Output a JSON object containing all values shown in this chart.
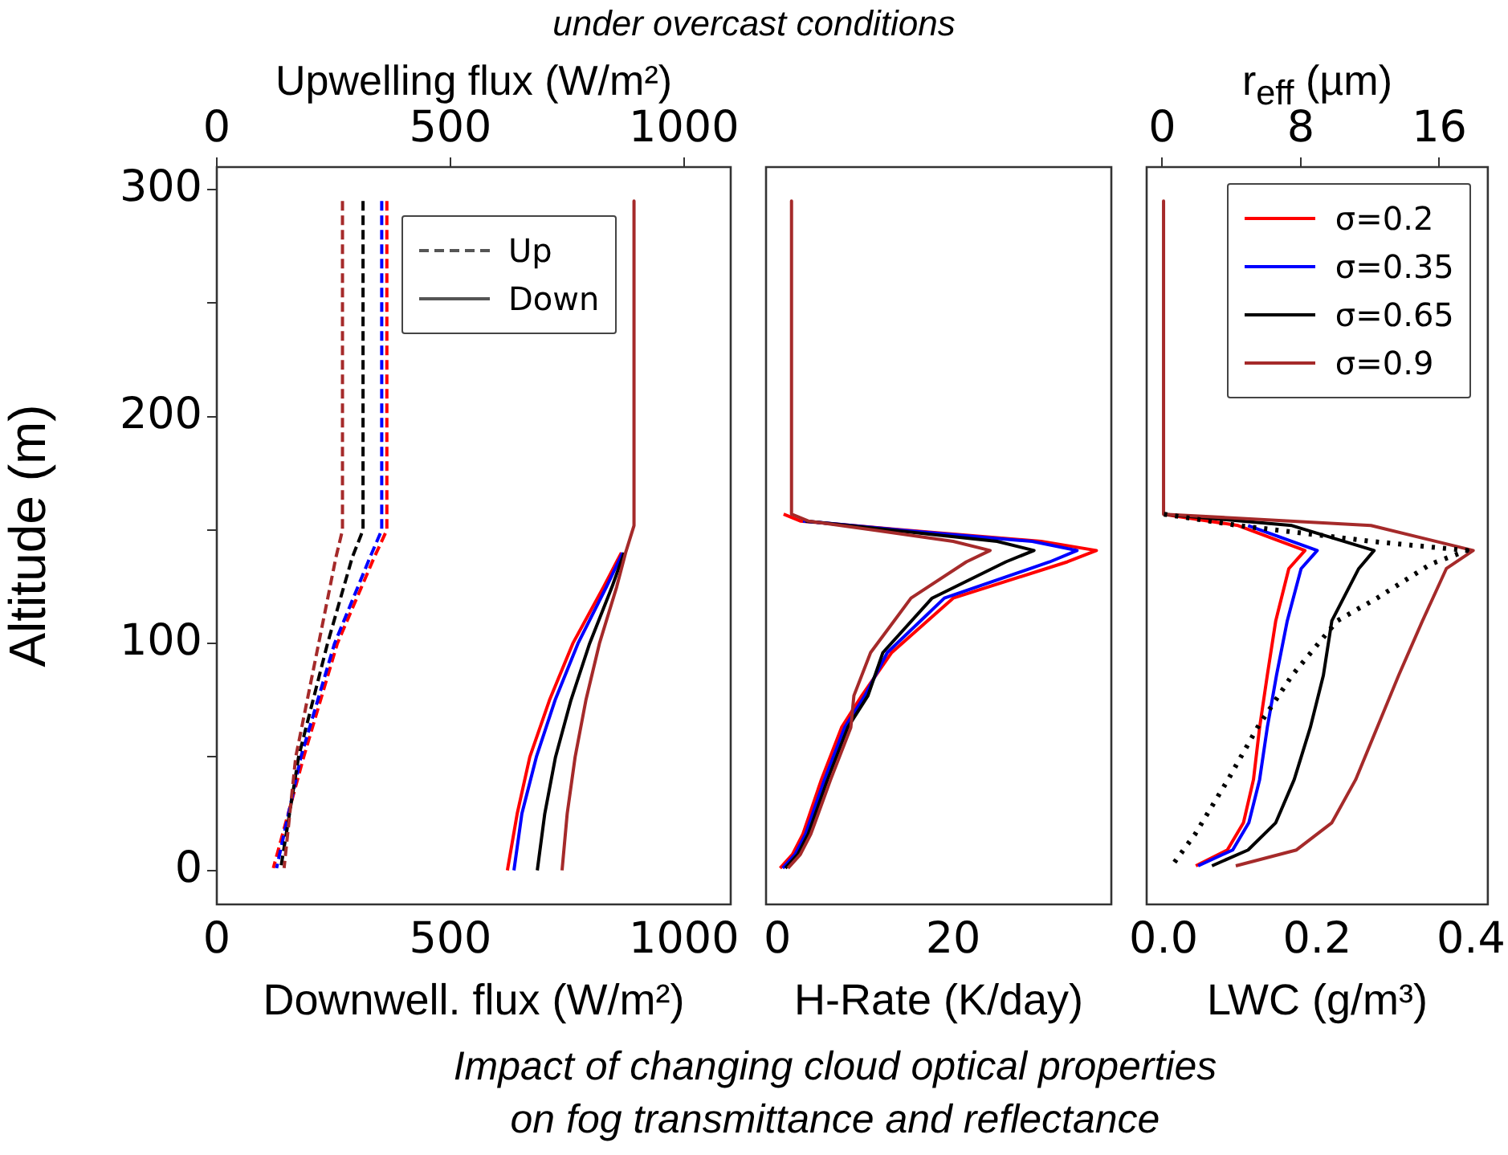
{
  "chart_data": [
    {
      "type": "line",
      "title": "under overcast conditions",
      "annotations": [
        "Impact of changing cloud optical properties on fog transmittance and reflectance"
      ],
      "xlabel": "Downwell. flux (W/m²)",
      "x2label": "Upwelling flux (W/m²)",
      "ylabel": "Altitude (m)",
      "xlim": [
        0,
        1100
      ],
      "xticks": [
        0,
        500,
        1000
      ],
      "x2lim": [
        0,
        1100
      ],
      "x2ticks": [
        0,
        500,
        1000
      ],
      "ylim": [
        -15,
        310
      ],
      "yticks": [
        0,
        {
          "value": 50,
          "label": null
        },
        100,
        {
          "value": 150,
          "label": null
        },
        200,
        {
          "value": 250,
          "label": null
        },
        300
      ],
      "legend": "top",
      "series": [
        {
          "color": "#ff0000",
          "axis": "x2",
          "line_style": "dashed",
          "x": [
            364,
            364,
            337,
            258,
            186,
            121
          ],
          "values": [
            295,
            150,
            138,
            100,
            50,
            1
          ]
        },
        {
          "color": "#0000ff",
          "axis": "x2",
          "line_style": "dashed",
          "x": [
            353,
            353,
            328,
            252,
            180,
            128
          ],
          "values": [
            295,
            150,
            138,
            100,
            50,
            1
          ]
        },
        {
          "color": "#000000",
          "axis": "x2",
          "line_style": "dashed",
          "x": [
            313,
            313,
            290,
            237,
            175,
            137
          ],
          "values": [
            295,
            150,
            138,
            100,
            50,
            1
          ]
        },
        {
          "color": "#a52a2a",
          "axis": "x2",
          "line_style": "dashed",
          "x": [
            269,
            269,
            255,
            218,
            169,
            144
          ],
          "values": [
            295,
            150,
            138,
            100,
            50,
            1
          ]
        },
        {
          "color": "#ff0000",
          "line_style": "solid",
          "x": [
            null,
            null,
            866,
            828,
            762,
            712,
            670,
            643,
            622
          ],
          "values": [
            null,
            null,
            140,
            125,
            100,
            75,
            50,
            25,
            0
          ]
        },
        {
          "color": "#0000ff",
          "line_style": "solid",
          "x": [
            null,
            null,
            869,
            834,
            773,
            724,
            684,
            653,
            636
          ],
          "values": [
            null,
            null,
            140,
            125,
            100,
            75,
            50,
            25,
            0
          ]
        },
        {
          "color": "#000000",
          "line_style": "solid",
          "x": [
            null,
            null,
            872,
            846,
            798,
            758,
            725,
            702,
            686
          ],
          "values": [
            null,
            null,
            140,
            125,
            100,
            75,
            50,
            25,
            0
          ]
        },
        {
          "color": "#a52a2a",
          "line_style": "solid",
          "x": [
            893,
            893,
            875,
            856,
            819,
            790,
            767,
            750,
            739
          ],
          "values": [
            295,
            152,
            140,
            125,
            100,
            75,
            50,
            25,
            0
          ]
        },
        {
          "name": "Up",
          "color": "#555555",
          "line_style": "dashed"
        },
        {
          "name": "Down",
          "color": "#555555",
          "line_style": "solid"
        }
      ]
    },
    {
      "type": "line",
      "xlabel": "H-Rate (K/day)",
      "xlim": [
        -1.3,
        38
      ],
      "xticks": [
        0,
        20
      ],
      "ylim": [
        -15,
        310
      ],
      "tick_labels": "x",
      "series": [
        {
          "color": "#ff0000",
          "x": [
            null,
            0.7,
            2.6,
            14.5,
            30,
            36.3,
            33,
            20,
            13.0,
            9.6,
            7.3,
            5.0,
            2.9,
            1.7,
            0.3
          ],
          "values": [
            null,
            157,
            154,
            150,
            145,
            141,
            136,
            120,
            96,
            77,
            63,
            40,
            16,
            7,
            1
          ]
        },
        {
          "color": "#0000ff",
          "x": [
            null,
            null,
            2.9,
            14,
            29,
            34.1,
            31,
            19,
            12.5,
            9.95,
            7.65,
            5.35,
            3.2,
            2.0,
            0.6
          ],
          "values": [
            null,
            null,
            154,
            150,
            145,
            141,
            136,
            120,
            96,
            77,
            63,
            40,
            16,
            7,
            1
          ]
        },
        {
          "color": "#000000",
          "x": [
            null,
            null,
            3.2,
            13,
            25,
            29.2,
            26,
            17.6,
            12.0,
            10.3,
            8.0,
            5.7,
            3.5,
            2.3,
            0.9
          ],
          "values": [
            null,
            null,
            154,
            150,
            145,
            141,
            136,
            120,
            96,
            77,
            63,
            40,
            16,
            7,
            1
          ]
        },
        {
          "color": "#a52a2a",
          "x": [
            1.6,
            1.6,
            3.5,
            11,
            20,
            24.2,
            21.5,
            15.2,
            10.6,
            8.7,
            8.35,
            6.05,
            3.8,
            2.6,
            1.2
          ],
          "values": [
            295,
            157,
            154,
            150,
            145,
            141,
            136,
            120,
            96,
            77,
            63,
            40,
            16,
            7,
            1
          ]
        }
      ]
    },
    {
      "type": "line",
      "xlabel": "LWC (g/m³)",
      "x2label": "r$_{eff}$ (µm)",
      "xlim": [
        -0.022,
        0.422
      ],
      "xticks": [
        {
          "value": 0,
          "label": "0.0"
        },
        0.2,
        0.4
      ],
      "x2lim": [
        -0.9,
        18.8
      ],
      "x2ticks": [
        0,
        8,
        16
      ],
      "ylim": [
        -15,
        310
      ],
      "tick_labels": "x",
      "legend": "top right",
      "series": [
        {
          "name": "σ=0.2",
          "color": "#ff0000",
          "x": [
            null,
            0,
            0.097,
            0.184,
            0.163,
            0.146,
            0.135,
            0.125,
            0.117,
            0.104,
            0.083,
            0.042
          ],
          "values": [
            null,
            157,
            152,
            141,
            133,
            110,
            86,
            63,
            40,
            21,
            9,
            2
          ]
        },
        {
          "name": "σ=0.35",
          "color": "#0000ff",
          "x": [
            null,
            null,
            0.11,
            0.2,
            0.179,
            0.161,
            0.147,
            0.135,
            0.125,
            0.111,
            0.09,
            0.045
          ],
          "values": [
            null,
            null,
            152,
            141,
            133,
            110,
            86,
            63,
            40,
            21,
            9,
            2
          ]
        },
        {
          "name": "σ=0.65",
          "color": "#000000",
          "x": [
            null,
            0,
            0.167,
            0.274,
            0.254,
            0.219,
            0.208,
            0.191,
            0.17,
            0.146,
            0.11,
            0.063
          ],
          "values": [
            null,
            157,
            152,
            141,
            133,
            110,
            86,
            63,
            40,
            21,
            9,
            2
          ]
        },
        {
          "name": "σ=0.9",
          "color": "#a52a2a",
          "x": [
            0,
            0,
            0.27,
            0.403,
            0.368,
            0.337,
            0.306,
            0.278,
            0.25,
            0.219,
            0.173,
            0.094
          ],
          "values": [
            295,
            157,
            152,
            141,
            133,
            110,
            86,
            63,
            40,
            21,
            9,
            2
          ]
        },
        {
          "color": "#000000",
          "axis": "x2",
          "line_style": "dotted",
          "x": [
            0.1,
            4.4,
            12.1,
            17.6,
            15.5,
            12.4,
            10.1,
            7.5,
            5.5,
            3.8,
            1.9,
            0.55
          ],
          "values": [
            157,
            152,
            145,
            141,
            135,
            120,
            110,
            86,
            63,
            40,
            16,
            2
          ]
        }
      ]
    }
  ]
}
